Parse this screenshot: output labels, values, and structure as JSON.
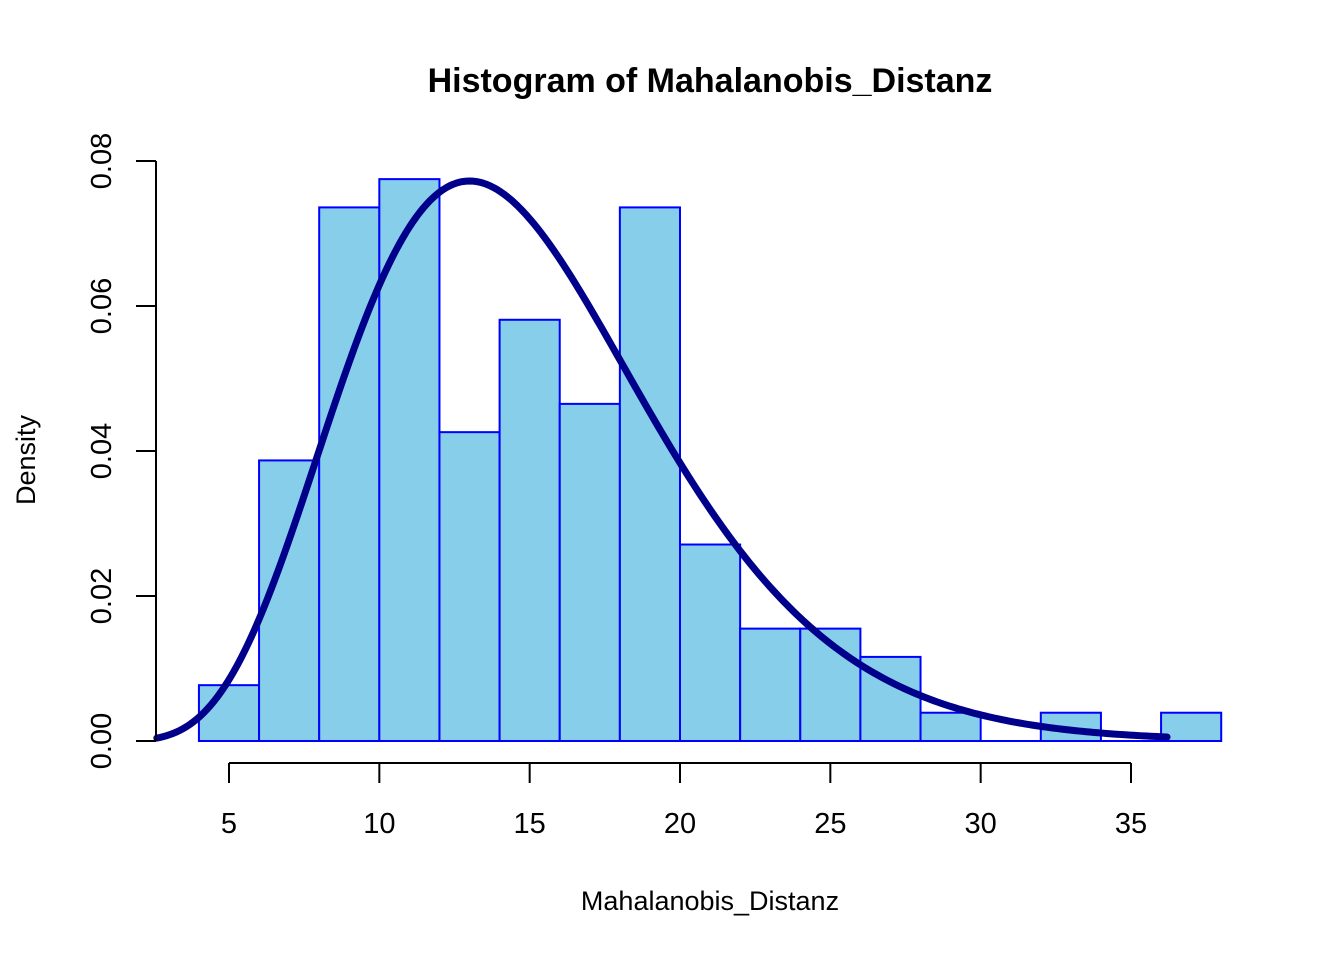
{
  "chart_data": {
    "type": "bar",
    "title": "Histogram of Mahalanobis_Distanz",
    "xlabel": "Mahalanobis_Distanz",
    "ylabel": "Density",
    "bins": [
      {
        "x0": 4,
        "x1": 6,
        "density": 0.0077
      },
      {
        "x0": 6,
        "x1": 8,
        "density": 0.0387
      },
      {
        "x0": 8,
        "x1": 10,
        "density": 0.0736
      },
      {
        "x0": 10,
        "x1": 12,
        "density": 0.0775
      },
      {
        "x0": 12,
        "x1": 14,
        "density": 0.0426
      },
      {
        "x0": 14,
        "x1": 16,
        "density": 0.0581
      },
      {
        "x0": 16,
        "x1": 18,
        "density": 0.0465
      },
      {
        "x0": 18,
        "x1": 20,
        "density": 0.0736
      },
      {
        "x0": 20,
        "x1": 22,
        "density": 0.0271
      },
      {
        "x0": 22,
        "x1": 24,
        "density": 0.0155
      },
      {
        "x0": 24,
        "x1": 26,
        "density": 0.0155
      },
      {
        "x0": 26,
        "x1": 28,
        "density": 0.0116
      },
      {
        "x0": 28,
        "x1": 30,
        "density": 0.0039
      },
      {
        "x0": 30,
        "x1": 32,
        "density": 0.0
      },
      {
        "x0": 32,
        "x1": 34,
        "density": 0.0039
      },
      {
        "x0": 34,
        "x1": 36,
        "density": 0.0
      },
      {
        "x0": 36,
        "x1": 38,
        "density": 0.0039
      }
    ],
    "density_curve": {
      "distribution": "gamma",
      "shape": 7.5,
      "rate": 0.5,
      "x_range": [
        2.6,
        36.2
      ]
    },
    "xlim": [
      2.6,
      38
    ],
    "ylim": [
      0,
      0.08
    ],
    "x_ticks": [
      5,
      10,
      15,
      20,
      25,
      30,
      35
    ],
    "y_ticks": [
      0.0,
      0.02,
      0.04,
      0.06,
      0.08
    ],
    "y_tick_labels": [
      "0.00",
      "0.02",
      "0.04",
      "0.06",
      "0.08"
    ],
    "grid": false,
    "colors": {
      "bar_fill": "#87CEEB",
      "bar_border": "#0000FF",
      "curve": "#00008B",
      "axis": "#000000"
    }
  }
}
